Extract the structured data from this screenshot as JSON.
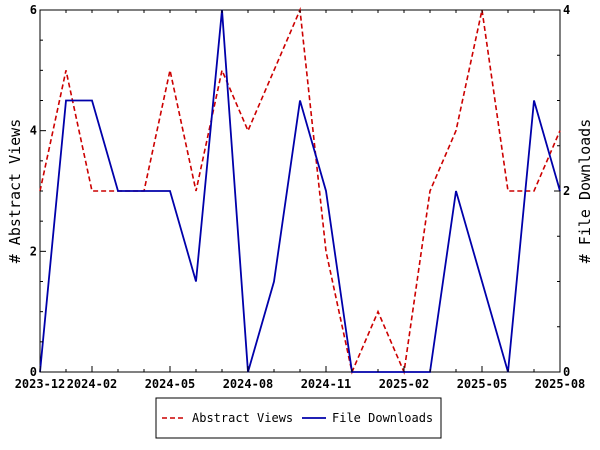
{
  "chart_data": {
    "type": "line",
    "x": [
      "2023-12",
      "2024-01",
      "2024-02",
      "2024-03",
      "2024-04",
      "2024-05",
      "2024-06",
      "2024-07",
      "2024-08",
      "2024-09",
      "2024-10",
      "2024-11",
      "2024-12",
      "2025-01",
      "2025-02",
      "2025-03",
      "2025-04",
      "2025-05",
      "2025-06",
      "2025-07",
      "2025-08"
    ],
    "x_tick_labels": [
      "2023-12",
      "2024-02",
      "2024-05",
      "2024-08",
      "2024-11",
      "2025-02",
      "2025-05",
      "2025-08"
    ],
    "x_tick_positions": [
      "2023-12",
      "2024-02",
      "2024-05",
      "2024-08",
      "2024-11",
      "2025-02",
      "2025-05",
      "2025-08"
    ],
    "series": [
      {
        "name": "Abstract Views",
        "axis": "left",
        "color": "#cc0000",
        "dash": "dashed",
        "values": [
          3,
          5,
          3,
          3,
          3,
          5,
          3,
          5,
          4,
          5,
          6,
          2,
          0,
          1,
          0,
          3,
          4,
          6,
          3,
          3,
          4
        ]
      },
      {
        "name": "File Downloads",
        "axis": "right",
        "color": "#0000aa",
        "dash": "solid",
        "values": [
          0,
          3,
          3,
          2,
          2,
          2,
          1,
          4,
          0,
          1,
          3,
          2,
          0,
          0,
          0,
          0,
          2,
          1,
          0,
          3,
          2
        ]
      }
    ],
    "ylabel_left": "# Abstract Views",
    "ylabel_right": "# File Downloads",
    "ylim_left": [
      0,
      6
    ],
    "ylim_right": [
      0,
      4
    ],
    "yticks_left": [
      "0",
      "2",
      "4",
      "6"
    ],
    "yticks_right": [
      "0",
      "2",
      "4"
    ],
    "grid": false,
    "legend_position": "bottom-center"
  }
}
